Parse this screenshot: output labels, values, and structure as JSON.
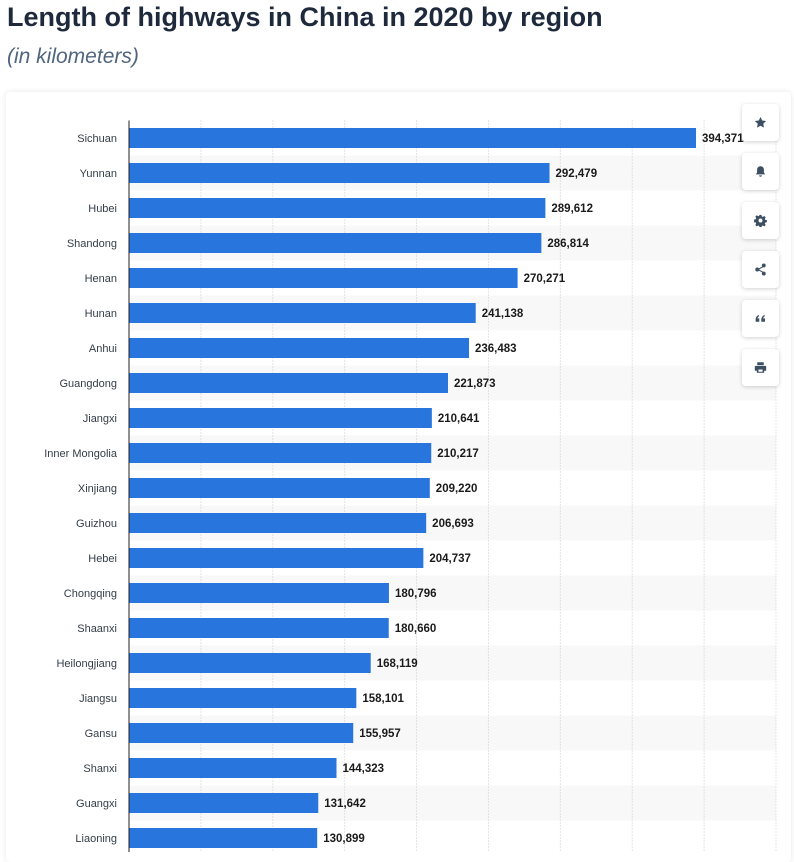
{
  "header": {
    "title": "Length of highways in China in 2020 by region",
    "subtitle": "(in kilometers)"
  },
  "toolbar": {
    "buttons": [
      {
        "icon": "star-icon"
      },
      {
        "icon": "bell-icon"
      },
      {
        "icon": "gear-icon"
      },
      {
        "icon": "share-icon"
      },
      {
        "icon": "quote-icon"
      },
      {
        "icon": "print-icon"
      }
    ]
  },
  "colors": {
    "bar": "#2876dd",
    "stripe": "#f8f8f8",
    "grid": "#c9c9c9",
    "axis": "#222222"
  },
  "chart_data": {
    "type": "bar",
    "orientation": "horizontal",
    "title": "Length of highways in China in 2020 by region",
    "subtitle": "(in kilometers)",
    "categories": [
      "Sichuan",
      "Yunnan",
      "Hubei",
      "Shandong",
      "Henan",
      "Hunan",
      "Anhui",
      "Guangdong",
      "Jiangxi",
      "Inner Mongolia",
      "Xinjiang",
      "Guizhou",
      "Hebei",
      "Chongqing",
      "Shaanxi",
      "Heilongjiang",
      "Jiangsu",
      "Gansu",
      "Shanxi",
      "Guangxi",
      "Liaoning"
    ],
    "values": [
      394371,
      292479,
      289612,
      286814,
      270271,
      241138,
      236483,
      221873,
      210641,
      210217,
      209220,
      206693,
      204737,
      180796,
      180660,
      168119,
      158101,
      155957,
      144323,
      131642,
      130899
    ],
    "value_labels": [
      "394,371",
      "292,479",
      "289,612",
      "286,814",
      "270,271",
      "241,138",
      "236,483",
      "221,873",
      "210,641",
      "210,217",
      "209,220",
      "206,693",
      "204,737",
      "180,796",
      "180,660",
      "168,119",
      "158,101",
      "155,957",
      "144,323",
      "131,642",
      "130,899"
    ],
    "xlim": [
      0,
      450000
    ],
    "grid": true,
    "stripes": true
  }
}
